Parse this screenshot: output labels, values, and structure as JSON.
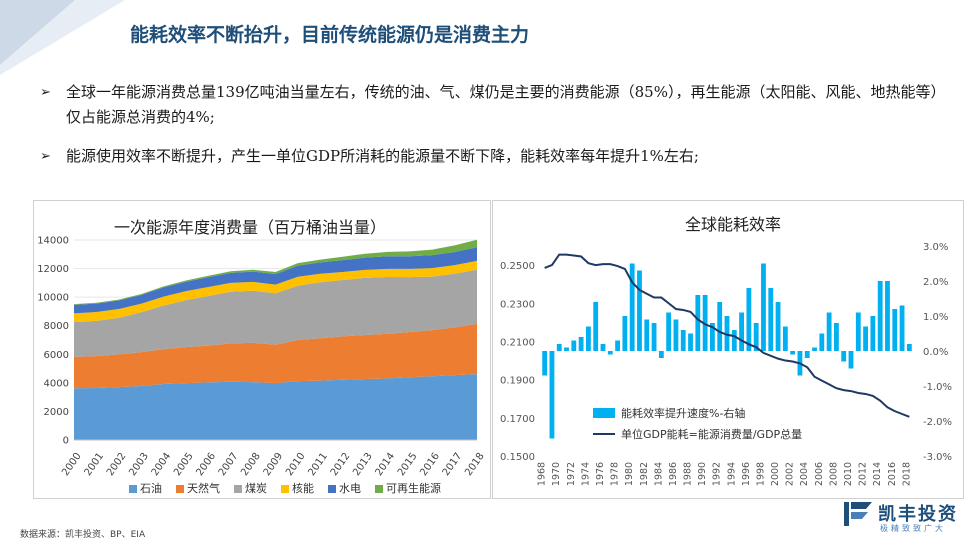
{
  "slide": {
    "title": "能耗效率不断抬升，目前传统能源仍是消费主力",
    "bullet_marker": "➢",
    "bullets": [
      "全球一年能源消费总量139亿吨油当量左右，传统的油、气、煤仍是主要的消费能源（85%），再生能源（太阳能、风能、地热能等）仅占能源总消费的4%;",
      "能源使用效率不断提升，产生一单位GDP所消耗的能源量不断下降，能耗效率每年提升1%左右;"
    ],
    "source": "数据来源：凯丰投资、BP、EIA",
    "logo_name": "凯丰投资",
    "logo_sub": "极精致致广大"
  },
  "chart_data": [
    {
      "type": "area",
      "stacked": true,
      "title": "一次能源年度消费量（百万桶油当量）",
      "ylim": [
        0,
        14000
      ],
      "yticks": [
        0,
        2000,
        4000,
        6000,
        8000,
        10000,
        12000,
        14000
      ],
      "categories": [
        "2000",
        "2001",
        "2002",
        "2003",
        "2004",
        "2005",
        "2006",
        "2007",
        "2008",
        "2009",
        "2010",
        "2011",
        "2012",
        "2013",
        "2014",
        "2015",
        "2016",
        "2017",
        "2018"
      ],
      "series": [
        {
          "name": "石油",
          "color": "#5b9bd5",
          "values": [
            3620,
            3640,
            3700,
            3780,
            3920,
            3980,
            4030,
            4080,
            4050,
            3980,
            4120,
            4160,
            4220,
            4270,
            4310,
            4390,
            4460,
            4540,
            4610
          ]
        },
        {
          "name": "天然气",
          "color": "#ed7d31",
          "values": [
            2200,
            2230,
            2290,
            2370,
            2440,
            2520,
            2580,
            2680,
            2750,
            2690,
            2880,
            2960,
            3030,
            3080,
            3120,
            3170,
            3230,
            3340,
            3520
          ]
        },
        {
          "name": "煤炭",
          "color": "#a5a5a5",
          "values": [
            2430,
            2470,
            2560,
            2790,
            3050,
            3290,
            3470,
            3620,
            3650,
            3600,
            3800,
            3920,
            3950,
            4000,
            3980,
            3840,
            3750,
            3760,
            3800
          ]
        },
        {
          "name": "核能",
          "color": "#ffc000",
          "values": [
            610,
            620,
            620,
            600,
            630,
            630,
            630,
            620,
            620,
            610,
            630,
            600,
            560,
            560,
            570,
            580,
            590,
            600,
            610
          ]
        },
        {
          "name": "水电",
          "color": "#4472c4",
          "values": [
            600,
            590,
            600,
            610,
            640,
            660,
            690,
            700,
            720,
            730,
            780,
            790,
            830,
            860,
            880,
            880,
            910,
            920,
            950
          ]
        },
        {
          "name": "可再生能源",
          "color": "#70ad47",
          "values": [
            50,
            55,
            60,
            65,
            75,
            85,
            95,
            110,
            125,
            150,
            170,
            200,
            235,
            270,
            305,
            340,
            390,
            460,
            530
          ]
        }
      ]
    },
    {
      "type": "bar+line",
      "title": "全球能耗效率",
      "categories": [
        "1968",
        "1969",
        "1970",
        "1971",
        "1972",
        "1973",
        "1974",
        "1975",
        "1976",
        "1977",
        "1978",
        "1979",
        "1980",
        "1981",
        "1982",
        "1983",
        "1984",
        "1985",
        "1986",
        "1987",
        "1988",
        "1989",
        "1990",
        "1991",
        "1992",
        "1993",
        "1994",
        "1995",
        "1996",
        "1997",
        "1998",
        "1999",
        "2000",
        "2001",
        "2002",
        "2003",
        "2004",
        "2005",
        "2006",
        "2007",
        "2008",
        "2009",
        "2010",
        "2011",
        "2012",
        "2013",
        "2014",
        "2015",
        "2016",
        "2017",
        "2018"
      ],
      "x_tick_labels": [
        "1968",
        "1970",
        "1972",
        "1974",
        "1976",
        "1978",
        "1980",
        "1982",
        "1984",
        "1986",
        "1988",
        "1990",
        "1992",
        "1994",
        "1996",
        "1998",
        "2000",
        "2002",
        "2004",
        "2006",
        "2008",
        "2010",
        "2012",
        "2014",
        "2016",
        "2018"
      ],
      "left_axis": {
        "ylim": [
          0.15,
          0.26
        ],
        "ticks": [
          "0.2500",
          "0.2300",
          "0.2100",
          "0.1900",
          "0.1700",
          "0.1500"
        ]
      },
      "right_axis": {
        "ylim": [
          -3.0,
          3.0
        ],
        "ticks": [
          "3.0%",
          "2.0%",
          "1.0%",
          "0.0%",
          "-1.0%",
          "-2.0%",
          "-3.0%"
        ]
      },
      "series": [
        {
          "name": "能耗效率提升速度%-右轴",
          "axis": "right",
          "kind": "bar",
          "color": "#00b0f0",
          "values": [
            -0.7,
            -2.5,
            0.2,
            0.1,
            0.3,
            0.4,
            0.7,
            1.4,
            0.2,
            -0.1,
            0.3,
            1.0,
            2.5,
            2.3,
            0.9,
            0.8,
            -0.2,
            1.1,
            0.9,
            0.6,
            0.5,
            1.6,
            1.6,
            0.8,
            1.4,
            1.0,
            0.6,
            1.1,
            1.8,
            0.8,
            2.5,
            1.8,
            1.4,
            0.7,
            -0.1,
            -0.7,
            -0.2,
            0.1,
            0.5,
            1.1,
            0.8,
            -0.3,
            -0.5,
            1.1,
            0.7,
            1.0,
            2.0,
            2.0,
            1.2,
            1.3,
            0.2
          ]
        },
        {
          "name": "单位GDP能耗=能源消费量/GDP总量",
          "axis": "left",
          "kind": "line",
          "color": "#1f3864",
          "values": [
            0.2485,
            0.25,
            0.2555,
            0.2555,
            0.255,
            0.2545,
            0.251,
            0.25,
            0.2505,
            0.2505,
            0.2495,
            0.248,
            0.241,
            0.237,
            0.235,
            0.233,
            0.233,
            0.23,
            0.227,
            0.2265,
            0.2255,
            0.2215,
            0.219,
            0.2175,
            0.215,
            0.2135,
            0.2128,
            0.2105,
            0.2085,
            0.207,
            0.204,
            0.2025,
            0.201,
            0.2,
            0.1995,
            0.1985,
            0.1965,
            0.1915,
            0.1895,
            0.1875,
            0.1855,
            0.1845,
            0.184,
            0.183,
            0.1825,
            0.1815,
            0.179,
            0.1755,
            0.1735,
            0.172,
            0.1705
          ]
        }
      ]
    }
  ]
}
